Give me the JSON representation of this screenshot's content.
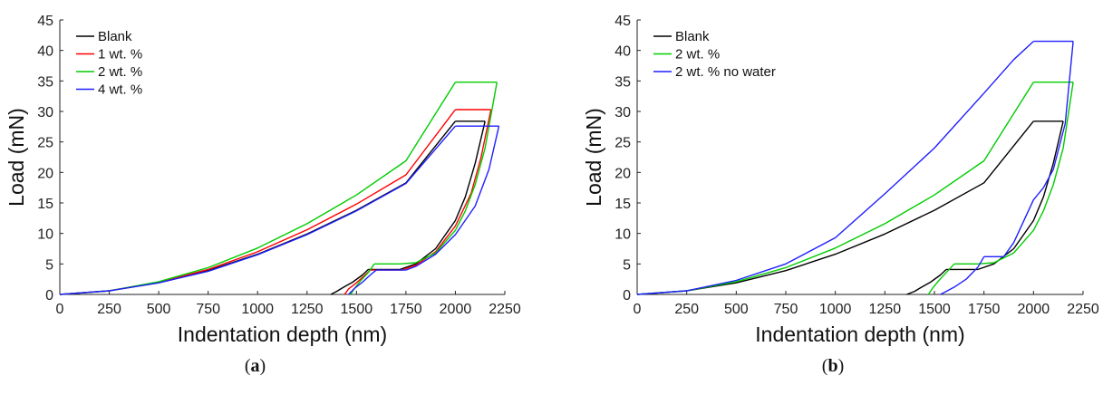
{
  "chart_data": [
    {
      "type": "line",
      "panel_label": "a",
      "xlabel": "Indentation depth (nm)",
      "ylabel": "Load (mN)",
      "xlim": [
        0,
        2250
      ],
      "ylim": [
        0,
        45
      ],
      "x_ticks": [
        "0",
        "250",
        "500",
        "750",
        "1000",
        "1250",
        "1500",
        "1750",
        "2000",
        "2250"
      ],
      "y_ticks": [
        "0",
        "5",
        "10",
        "15",
        "20",
        "25",
        "30",
        "35",
        "40",
        "45"
      ],
      "legend_position": "top-left",
      "series": [
        {
          "name": "Blank",
          "color": "#000000",
          "loading": [
            [
              0,
              0
            ],
            [
              250,
              0.6
            ],
            [
              500,
              1.9
            ],
            [
              750,
              3.9
            ],
            [
              1000,
              6.6
            ],
            [
              1250,
              9.9
            ],
            [
              1500,
              13.8
            ],
            [
              1750,
              18.3
            ],
            [
              2000,
              28.4
            ]
          ],
          "hold_max": [
            [
              2000,
              28.4
            ],
            [
              2150,
              28.4
            ]
          ],
          "unloading": [
            [
              2150,
              28.4
            ],
            [
              2100,
              21.5
            ],
            [
              2050,
              16.0
            ],
            [
              2000,
              12.1
            ],
            [
              1900,
              7.5
            ],
            [
              1800,
              5.0
            ],
            [
              1720,
              4.1
            ]
          ],
          "hold_low": [
            [
              1720,
              4.1
            ],
            [
              1560,
              4.1
            ]
          ],
          "tail": [
            [
              1560,
              4.1
            ],
            [
              1530,
              3.2
            ],
            [
              1480,
              2.0
            ],
            [
              1430,
              1.1
            ],
            [
              1400,
              0.5
            ],
            [
              1370,
              0
            ]
          ]
        },
        {
          "name": "1 wt. %",
          "color": "#ff0000",
          "loading": [
            [
              0,
              0
            ],
            [
              250,
              0.6
            ],
            [
              500,
              2.0
            ],
            [
              750,
              4.1
            ],
            [
              1000,
              7.0
            ],
            [
              1250,
              10.6
            ],
            [
              1500,
              14.8
            ],
            [
              1750,
              19.6
            ],
            [
              2000,
              30.3
            ]
          ],
          "hold_max": [
            [
              2000,
              30.3
            ],
            [
              2180,
              30.3
            ]
          ],
          "unloading": [
            [
              2180,
              30.3
            ],
            [
              2130,
              22.5
            ],
            [
              2080,
              16.6
            ],
            [
              2000,
              11.2
            ],
            [
              1900,
              7.0
            ],
            [
              1800,
              4.8
            ],
            [
              1730,
              4.0
            ]
          ],
          "hold_low": [
            [
              1730,
              4.0
            ],
            [
              1570,
              4.0
            ]
          ],
          "tail": [
            [
              1570,
              4.0
            ],
            [
              1540,
              3.1
            ],
            [
              1500,
              1.9
            ],
            [
              1460,
              0.9
            ],
            [
              1440,
              0
            ]
          ]
        },
        {
          "name": "2 wt. %",
          "color": "#00cc00",
          "loading": [
            [
              0,
              0
            ],
            [
              250,
              0.6
            ],
            [
              500,
              2.1
            ],
            [
              750,
              4.4
            ],
            [
              1000,
              7.6
            ],
            [
              1250,
              11.6
            ],
            [
              1500,
              16.3
            ],
            [
              1750,
              21.9
            ],
            [
              2000,
              34.8
            ]
          ],
          "hold_max": [
            [
              2000,
              34.8
            ],
            [
              2210,
              34.8
            ]
          ],
          "unloading": [
            [
              2210,
              34.8
            ],
            [
              2150,
              24.0
            ],
            [
              2100,
              18.0
            ],
            [
              2050,
              13.7
            ],
            [
              2000,
              10.5
            ],
            [
              1900,
              6.8
            ],
            [
              1800,
              5.2
            ],
            [
              1720,
              5.0
            ]
          ],
          "hold_low": [
            [
              1720,
              5.0
            ],
            [
              1590,
              5.0
            ]
          ],
          "tail": [
            [
              1590,
              5.0
            ],
            [
              1560,
              3.6
            ],
            [
              1520,
              2.2
            ],
            [
              1490,
              1.0
            ],
            [
              1470,
              0
            ]
          ]
        },
        {
          "name": "4 wt. %",
          "color": "#1f1fff",
          "loading": [
            [
              0,
              0
            ],
            [
              250,
              0.6
            ],
            [
              500,
              1.9
            ],
            [
              750,
              3.8
            ],
            [
              1000,
              6.5
            ],
            [
              1250,
              9.8
            ],
            [
              1500,
              13.7
            ],
            [
              1750,
              18.2
            ],
            [
              2000,
              27.6
            ]
          ],
          "hold_max": [
            [
              2000,
              27.6
            ],
            [
              2220,
              27.6
            ]
          ],
          "unloading": [
            [
              2220,
              27.6
            ],
            [
              2170,
              20.5
            ],
            [
              2100,
              14.5
            ],
            [
              2000,
              9.8
            ],
            [
              1900,
              6.6
            ],
            [
              1800,
              4.6
            ],
            [
              1750,
              4.0
            ]
          ],
          "hold_low": [
            [
              1750,
              4.0
            ],
            [
              1600,
              4.0
            ]
          ],
          "tail": [
            [
              1600,
              4.0
            ],
            [
              1570,
              3.2
            ],
            [
              1530,
              2.0
            ],
            [
              1490,
              1.0
            ],
            [
              1460,
              0
            ]
          ]
        }
      ]
    },
    {
      "type": "line",
      "panel_label": "b",
      "xlabel": "Indentation depth (nm)",
      "ylabel": "Load (mN)",
      "xlim": [
        0,
        2250
      ],
      "ylim": [
        0,
        45
      ],
      "x_ticks": [
        "0",
        "250",
        "500",
        "750",
        "1000",
        "1250",
        "1500",
        "1750",
        "2000",
        "2250"
      ],
      "y_ticks": [
        "0",
        "5",
        "10",
        "15",
        "20",
        "25",
        "30",
        "35",
        "40",
        "45"
      ],
      "legend_position": "top-left",
      "series": [
        {
          "name": "Blank",
          "color": "#000000",
          "loading": [
            [
              0,
              0
            ],
            [
              250,
              0.6
            ],
            [
              500,
              1.9
            ],
            [
              750,
              3.9
            ],
            [
              1000,
              6.6
            ],
            [
              1250,
              9.9
            ],
            [
              1500,
              13.8
            ],
            [
              1750,
              18.3
            ],
            [
              2000,
              28.4
            ]
          ],
          "hold_max": [
            [
              2000,
              28.4
            ],
            [
              2150,
              28.4
            ]
          ],
          "unloading": [
            [
              2150,
              28.4
            ],
            [
              2100,
              21.5
            ],
            [
              2050,
              16.0
            ],
            [
              2000,
              12.1
            ],
            [
              1900,
              7.5
            ],
            [
              1800,
              5.0
            ],
            [
              1720,
              4.1
            ]
          ],
          "hold_low": [
            [
              1720,
              4.1
            ],
            [
              1560,
              4.1
            ]
          ],
          "tail": [
            [
              1560,
              4.1
            ],
            [
              1530,
              3.2
            ],
            [
              1480,
              2.0
            ],
            [
              1430,
              1.1
            ],
            [
              1400,
              0.5
            ],
            [
              1360,
              0
            ]
          ]
        },
        {
          "name": "2 wt. %",
          "color": "#00cc00",
          "loading": [
            [
              0,
              0
            ],
            [
              250,
              0.6
            ],
            [
              500,
              2.1
            ],
            [
              750,
              4.4
            ],
            [
              1000,
              7.6
            ],
            [
              1250,
              11.6
            ],
            [
              1500,
              16.3
            ],
            [
              1750,
              21.9
            ],
            [
              2000,
              34.8
            ]
          ],
          "hold_max": [
            [
              2000,
              34.8
            ],
            [
              2200,
              34.8
            ]
          ],
          "unloading": [
            [
              2200,
              34.8
            ],
            [
              2150,
              24.0
            ],
            [
              2100,
              18.0
            ],
            [
              2050,
              13.7
            ],
            [
              2000,
              10.5
            ],
            [
              1900,
              6.8
            ],
            [
              1800,
              5.2
            ],
            [
              1720,
              5.0
            ]
          ],
          "hold_low": [
            [
              1720,
              5.0
            ],
            [
              1600,
              5.0
            ]
          ],
          "tail": [
            [
              1600,
              5.0
            ],
            [
              1560,
              3.6
            ],
            [
              1520,
              2.2
            ],
            [
              1490,
              1.0
            ],
            [
              1470,
              0
            ]
          ]
        },
        {
          "name": "2 wt. % no water",
          "color": "#1f1fff",
          "loading": [
            [
              0,
              0
            ],
            [
              250,
              0.6
            ],
            [
              500,
              2.3
            ],
            [
              750,
              5.0
            ],
            [
              1000,
              9.3
            ],
            [
              1250,
              16.5
            ],
            [
              1500,
              24.0
            ],
            [
              1750,
              33.0
            ],
            [
              1900,
              38.5
            ],
            [
              2000,
              41.5
            ]
          ],
          "hold_max": [
            [
              2000,
              41.5
            ],
            [
              2200,
              41.5
            ]
          ],
          "unloading": [
            [
              2200,
              41.5
            ],
            [
              2160,
              28.0
            ],
            [
              2100,
              20.5
            ],
            [
              2050,
              17.5
            ],
            [
              2000,
              15.5
            ],
            [
              1950,
              12.0
            ],
            [
              1900,
              8.5
            ],
            [
              1850,
              6.2
            ]
          ],
          "hold_low": [
            [
              1850,
              6.2
            ],
            [
              1750,
              6.2
            ]
          ],
          "tail": [
            [
              1750,
              6.2
            ],
            [
              1720,
              4.5
            ],
            [
              1660,
              2.5
            ],
            [
              1600,
              1.2
            ],
            [
              1560,
              0.5
            ],
            [
              1530,
              0
            ]
          ]
        }
      ]
    }
  ]
}
